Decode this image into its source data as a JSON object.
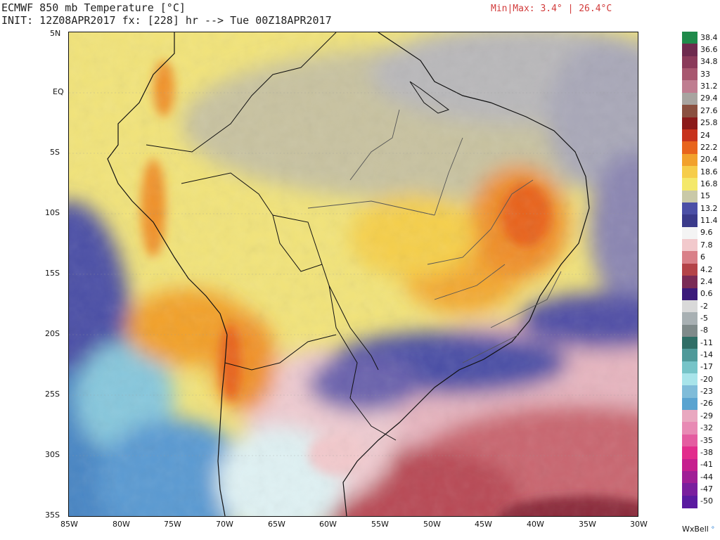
{
  "header": {
    "title_line1": "ECMWF 850 mb Temperature [°C]",
    "title_line2": "INIT: 12Z08APR2017 fx: [228] hr --> Tue 00Z18APR2017",
    "minmax": "Min|Max: 3.4° | 26.4°C"
  },
  "map": {
    "region": "South America / Brazil",
    "lat_labels": [
      "5N",
      "EQ",
      "5S",
      "10S",
      "15S",
      "20S",
      "25S",
      "30S",
      "35S"
    ],
    "lon_labels": [
      "85W",
      "80W",
      "75W",
      "70W",
      "65W",
      "60W",
      "55W",
      "50W",
      "45W",
      "40W",
      "35W",
      "30W"
    ],
    "colors": {
      "warm_yellow": "#f4e86a",
      "orange": "#f2a12c",
      "deep_orange": "#e8641c",
      "cool_purple": "#4b4fa6",
      "pink": "#e9b3bb",
      "red": "#b44348",
      "light_cyan": "#cfeef2",
      "blue": "#3e7fc0"
    }
  },
  "colorbar": {
    "labels": [
      "38.4",
      "36.6",
      "34.8",
      "33",
      "31.2",
      "29.4",
      "27.6",
      "25.8",
      "24",
      "22.2",
      "20.4",
      "18.6",
      "16.8",
      "15",
      "13.2",
      "11.4",
      "9.6",
      "7.8",
      "6",
      "4.2",
      "2.4",
      "0.6",
      "-2",
      "-5",
      "-8",
      "-11",
      "-14",
      "-17",
      "-20",
      "-23",
      "-26",
      "-29",
      "-32",
      "-35",
      "-38",
      "-41",
      "-44",
      "-47",
      "-50"
    ],
    "colors": [
      "#1f8a4a",
      "#6e2a4e",
      "#8b3a5a",
      "#a8576f",
      "#bf7d90",
      "#a8a4a0",
      "#8a5040",
      "#8b1a1a",
      "#c7321c",
      "#e8641c",
      "#f2a12c",
      "#f6cd4a",
      "#f4e86a",
      "#c9c9a8",
      "#4b4fa6",
      "#3a3a8a",
      "#f4f4f4",
      "#f2c9cc",
      "#d98088",
      "#b44348",
      "#7a2a55",
      "#3b1a7a",
      "#d9d9d9",
      "#a8b0b3",
      "#7f8a8a",
      "#2f6e66",
      "#4f9a9a",
      "#76c4c8",
      "#a8e4ea",
      "#7fbcd9",
      "#5aa3d0",
      "#e9a8c0",
      "#e88ab4",
      "#e45ca0",
      "#e22c8c",
      "#c61e8e",
      "#a01e96",
      "#7a1e9e",
      "#5a1aa0"
    ]
  },
  "brand": {
    "name": "WxBell",
    "mark": "°"
  }
}
